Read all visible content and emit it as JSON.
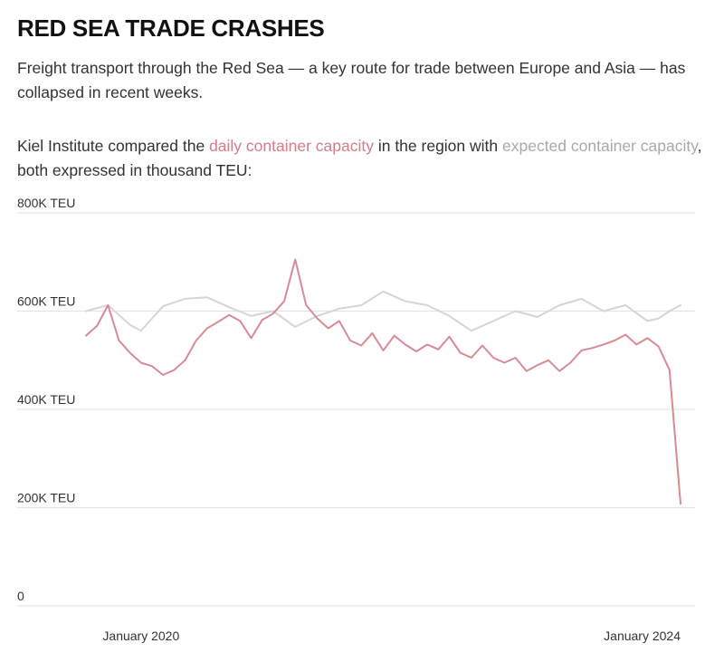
{
  "header": {
    "title": "RED SEA TRADE CRASHES",
    "subtitle": "Freight transport through the Red Sea — a key route for trade between Europe and Asia — has collapsed in recent weeks.",
    "note_prefix": "Kiel Institute compared the ",
    "note_actual": "daily container capacity",
    "note_middle": " in the region with ",
    "note_expected": "expected container capacity",
    "note_suffix": ", both expressed in thousand TEU:"
  },
  "colors": {
    "actual": "#d98a96",
    "expected": "#d6d6d6",
    "grid": "#e2e2e2"
  },
  "chart_data": {
    "type": "line",
    "x_range": [
      "2019-07",
      "2024-01"
    ],
    "ylim": [
      0,
      800
    ],
    "grid": true,
    "y_ticks": [
      {
        "value": 800,
        "label": "800K TEU"
      },
      {
        "value": 600,
        "label": "600K TEU"
      },
      {
        "value": 400,
        "label": "400K TEU"
      },
      {
        "value": 200,
        "label": "200K TEU"
      },
      {
        "value": 0,
        "label": "0"
      }
    ],
    "x_tick_labels": [
      {
        "date": "2019-12",
        "label": "January 2020"
      },
      {
        "date": "2024-01",
        "label": "January 2024"
      }
    ],
    "series": [
      {
        "key": "expected",
        "values": [
          [
            "2019-07",
            600
          ],
          [
            "2019-09",
            612
          ],
          [
            "2019-11",
            572
          ],
          [
            "2019-12",
            560
          ],
          [
            "2020-02",
            610
          ],
          [
            "2020-04",
            625
          ],
          [
            "2020-06",
            628
          ],
          [
            "2020-08",
            608
          ],
          [
            "2020-10",
            590
          ],
          [
            "2020-12",
            600
          ],
          [
            "2021-02",
            568
          ],
          [
            "2021-04",
            590
          ],
          [
            "2021-06",
            605
          ],
          [
            "2021-08",
            612
          ],
          [
            "2021-10",
            640
          ],
          [
            "2021-12",
            620
          ],
          [
            "2022-02",
            612
          ],
          [
            "2022-04",
            590
          ],
          [
            "2022-06",
            560
          ],
          [
            "2022-08",
            580
          ],
          [
            "2022-10",
            600
          ],
          [
            "2022-12",
            588
          ],
          [
            "2023-02",
            612
          ],
          [
            "2023-04",
            625
          ],
          [
            "2023-06",
            600
          ],
          [
            "2023-08",
            612
          ],
          [
            "2023-10",
            580
          ],
          [
            "2023-11",
            585
          ],
          [
            "2023-12",
            600
          ],
          [
            "2024-01",
            612
          ]
        ]
      },
      {
        "key": "actual",
        "values": [
          [
            "2019-07",
            550
          ],
          [
            "2019-08",
            570
          ],
          [
            "2019-09",
            612
          ],
          [
            "2019-10",
            540
          ],
          [
            "2019-11",
            515
          ],
          [
            "2019-12",
            495
          ],
          [
            "2020-01",
            488
          ],
          [
            "2020-02",
            470
          ],
          [
            "2020-03",
            480
          ],
          [
            "2020-04",
            500
          ],
          [
            "2020-05",
            540
          ],
          [
            "2020-06",
            565
          ],
          [
            "2020-07",
            578
          ],
          [
            "2020-08",
            592
          ],
          [
            "2020-09",
            580
          ],
          [
            "2020-10",
            545
          ],
          [
            "2020-11",
            582
          ],
          [
            "2020-12",
            595
          ],
          [
            "2021-01",
            620
          ],
          [
            "2021-02",
            705
          ],
          [
            "2021-03",
            612
          ],
          [
            "2021-04",
            585
          ],
          [
            "2021-05",
            565
          ],
          [
            "2021-06",
            580
          ],
          [
            "2021-07",
            540
          ],
          [
            "2021-08",
            530
          ],
          [
            "2021-09",
            555
          ],
          [
            "2021-10",
            520
          ],
          [
            "2021-11",
            550
          ],
          [
            "2021-12",
            532
          ],
          [
            "2022-01",
            518
          ],
          [
            "2022-02",
            532
          ],
          [
            "2022-03",
            522
          ],
          [
            "2022-04",
            548
          ],
          [
            "2022-05",
            515
          ],
          [
            "2022-06",
            505
          ],
          [
            "2022-07",
            530
          ],
          [
            "2022-08",
            505
          ],
          [
            "2022-09",
            495
          ],
          [
            "2022-10",
            505
          ],
          [
            "2022-11",
            478
          ],
          [
            "2022-12",
            490
          ],
          [
            "2023-01",
            500
          ],
          [
            "2023-02",
            478
          ],
          [
            "2023-03",
            495
          ],
          [
            "2023-04",
            520
          ],
          [
            "2023-05",
            525
          ],
          [
            "2023-06",
            532
          ],
          [
            "2023-07",
            540
          ],
          [
            "2023-08",
            552
          ],
          [
            "2023-09",
            532
          ],
          [
            "2023-10",
            545
          ],
          [
            "2023-11",
            528
          ],
          [
            "2023-12",
            480
          ],
          [
            "2024-01",
            208
          ]
        ]
      }
    ]
  }
}
